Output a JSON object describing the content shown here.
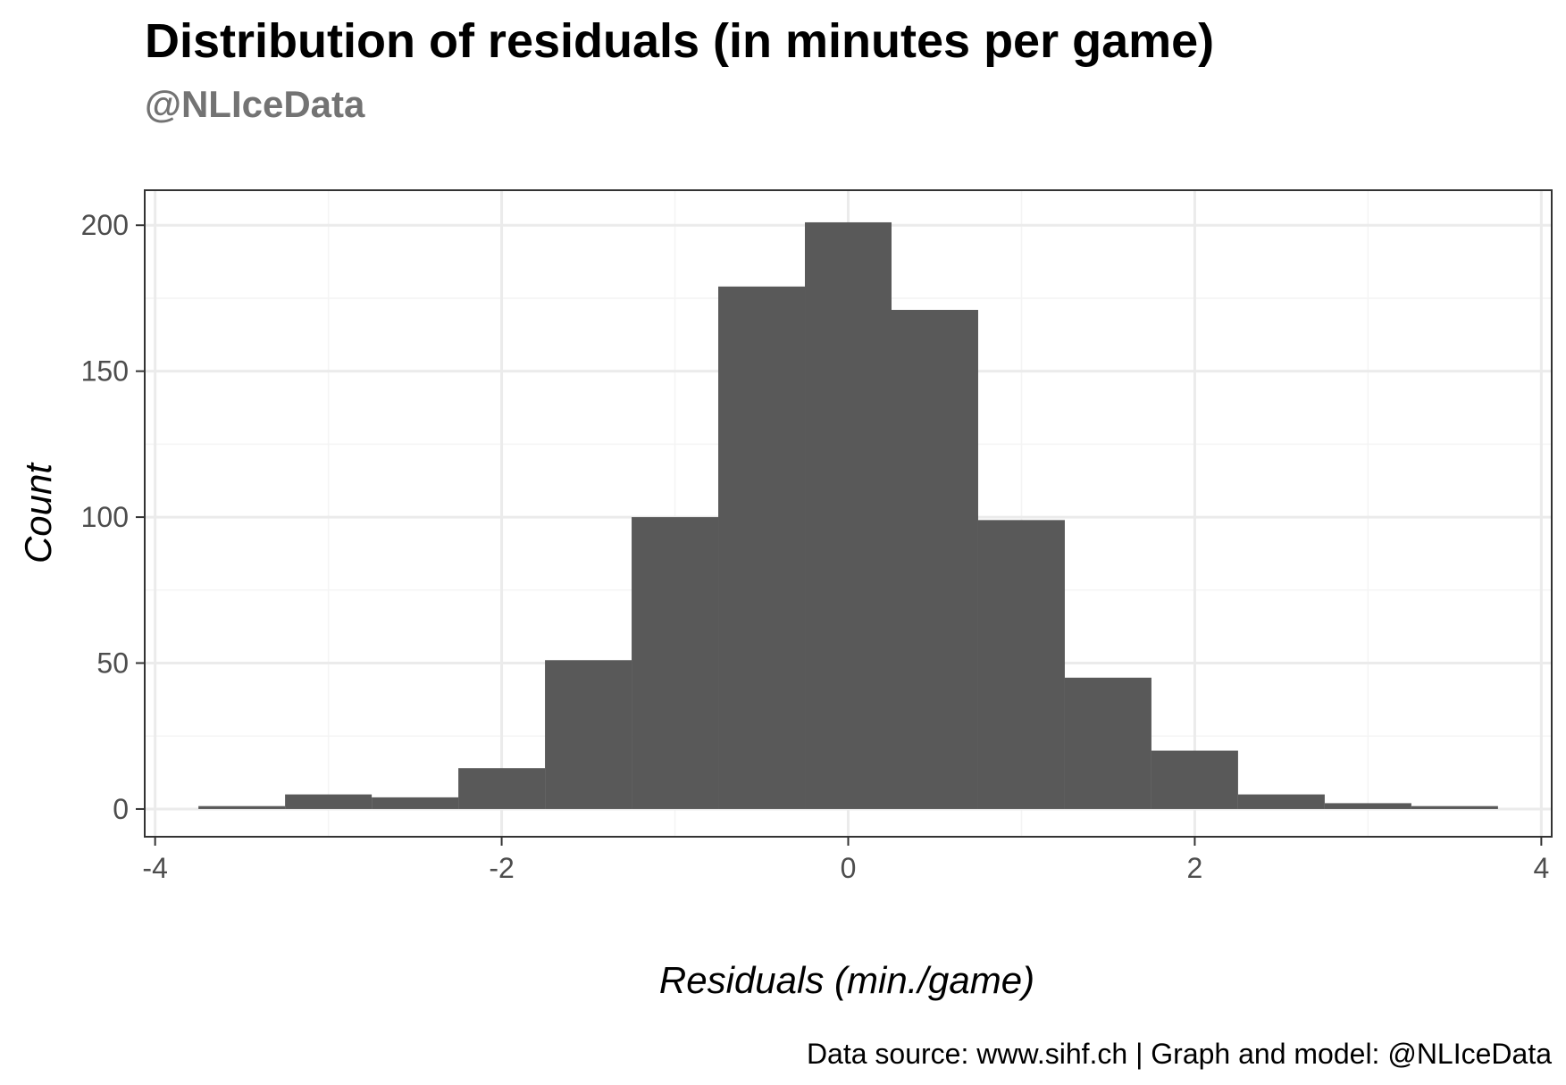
{
  "chart_data": {
    "type": "bar",
    "title": "Distribution of residuals (in minutes per game)",
    "subtitle": "@NLIceData",
    "xlabel": "Residuals (min./game)",
    "ylabel": "Count",
    "caption": "Data source: www.sihf.ch | Graph and model: @NLIceData",
    "bin_width": 0.5,
    "bin_starts": [
      -3.75,
      -3.25,
      -2.75,
      -2.25,
      -1.75,
      -1.25,
      -0.75,
      -0.25,
      0.25,
      0.75,
      1.25,
      1.75,
      2.25,
      2.75,
      3.25
    ],
    "values": [
      1,
      5,
      4,
      14,
      51,
      100,
      179,
      201,
      171,
      99,
      45,
      20,
      5,
      2,
      1
    ],
    "xlim": [
      -4.06,
      4.06
    ],
    "ylim": [
      -9.5,
      212
    ],
    "x_ticks": [
      -4,
      -2,
      0,
      2,
      4
    ],
    "x_tick_labels": [
      "-4",
      "-2",
      "0",
      "2",
      "4"
    ],
    "y_ticks": [
      0,
      50,
      100,
      150,
      200
    ],
    "y_tick_labels": [
      "0",
      "50",
      "100",
      "150",
      "200"
    ],
    "grid": true,
    "colors": {
      "bar": "#595959",
      "grid_major": "#ebebeb",
      "grid_minor": "#f4f4f4",
      "panel_border": "#333333",
      "tick_label": "#4d4d4d",
      "subtitle": "#737373"
    }
  }
}
